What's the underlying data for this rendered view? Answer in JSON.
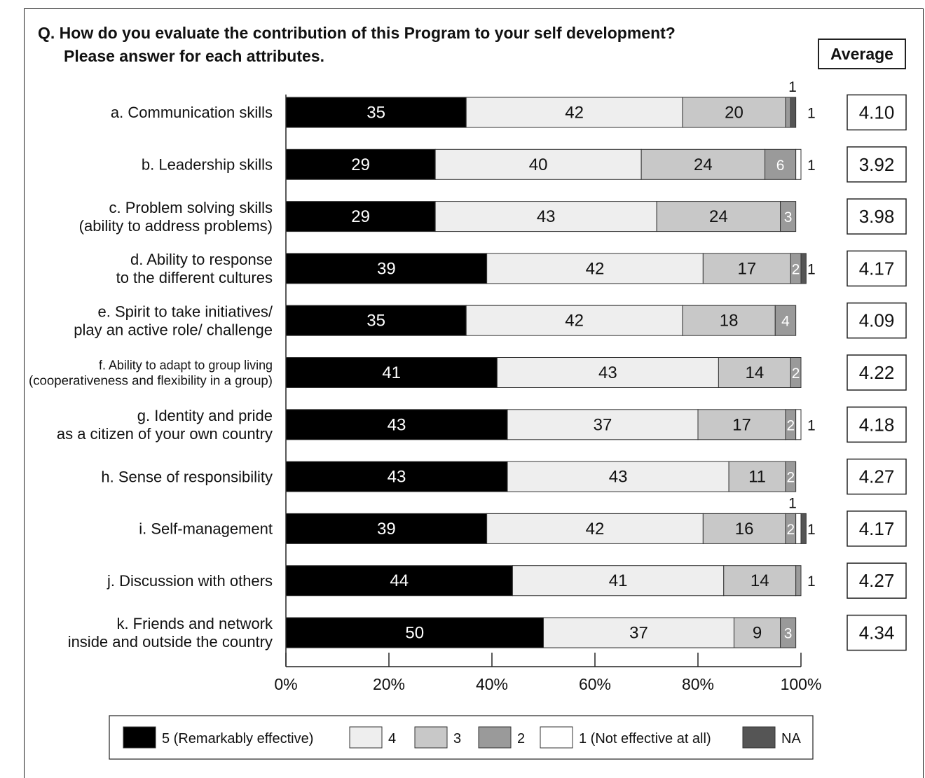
{
  "title_line1": "Q. How do you evaluate the contribution of this Program to your self development?",
  "title_line2": "Please answer for each attributes.",
  "average_header": "Average",
  "colors": {
    "5 (Remarkably effective)": "#000000",
    "4": "#eeeeee",
    "3": "#c8c8c8",
    "2": "#9a9a9a",
    "1 (Not effective at all)": "#ffffff",
    "NA": "#555555"
  },
  "chart_data": {
    "type": "bar",
    "orientation": "horizontal",
    "stacked": "100%",
    "categories": [
      [
        "a. Communication skills"
      ],
      [
        "b. Leadership skills"
      ],
      [
        "c. Problem solving skills",
        "(ability to address problems)"
      ],
      [
        "d. Ability to response",
        "to the different cultures"
      ],
      [
        "e. Spirit to take initiatives/",
        "play an active role/ challenge"
      ],
      [
        "f. Ability to adapt to group living",
        "(cooperativeness and flexibility in a group)"
      ],
      [
        "g. Identity and pride",
        "as a citizen of your own country"
      ],
      [
        "h. Sense of responsibility"
      ],
      [
        "i. Self-management"
      ],
      [
        "j. Discussion with others"
      ],
      [
        "k. Friends and network",
        "inside and outside the country"
      ]
    ],
    "series": [
      {
        "name": "5 (Remarkably effective)",
        "values": [
          35,
          29,
          29,
          39,
          35,
          41,
          43,
          43,
          39,
          44,
          50
        ]
      },
      {
        "name": "4",
        "values": [
          42,
          40,
          43,
          42,
          42,
          43,
          37,
          43,
          42,
          41,
          37
        ]
      },
      {
        "name": "3",
        "values": [
          20,
          24,
          24,
          17,
          18,
          14,
          17,
          11,
          16,
          14,
          9
        ]
      },
      {
        "name": "2",
        "values": [
          1,
          6,
          3,
          2,
          4,
          2,
          2,
          2,
          2,
          1,
          3
        ]
      },
      {
        "name": "1 (Not effective at all)",
        "values": [
          0,
          1,
          0,
          0,
          0,
          0,
          1,
          0,
          1,
          0,
          0
        ]
      },
      {
        "name": "NA",
        "values": [
          1,
          0,
          0,
          1,
          0,
          0,
          0,
          0,
          1,
          0,
          0
        ]
      }
    ],
    "labels": [
      [
        "35",
        "42",
        "20",
        "",
        "",
        ""
      ],
      [
        "29",
        "40",
        "24",
        "6",
        "",
        ""
      ],
      [
        "29",
        "43",
        "24",
        "3",
        "",
        ""
      ],
      [
        "39",
        "42",
        "17",
        "2",
        "",
        ""
      ],
      [
        "35",
        "42",
        "18",
        "4",
        "",
        ""
      ],
      [
        "41",
        "43",
        "14",
        "2",
        "",
        ""
      ],
      [
        "43",
        "37",
        "17",
        "2",
        "",
        ""
      ],
      [
        "43",
        "43",
        "11",
        "2",
        "",
        ""
      ],
      [
        "39",
        "42",
        "16",
        "2",
        "",
        ""
      ],
      [
        "44",
        "41",
        "14",
        "",
        "",
        ""
      ],
      [
        "50",
        "37",
        "9",
        "3",
        "",
        ""
      ]
    ],
    "outside_right_labels": [
      "1",
      "1",
      "",
      "1",
      "",
      "",
      "1",
      "",
      "1",
      "1",
      ""
    ],
    "top_labels": [
      "1",
      "",
      "",
      "",
      "",
      "",
      "",
      "",
      "1",
      "",
      ""
    ],
    "averages": [
      "4.10",
      "3.92",
      "3.98",
      "4.17",
      "4.09",
      "4.22",
      "4.18",
      "4.27",
      "4.17",
      "4.27",
      "4.34"
    ],
    "x_ticks": [
      "0%",
      "20%",
      "40%",
      "60%",
      "80%",
      "100%"
    ],
    "xlim": [
      0,
      100
    ],
    "legend": {
      "position": "bottom",
      "entries": [
        "5 (Remarkably effective)",
        "4",
        "3",
        "2",
        "1 (Not effective at all)",
        "NA"
      ]
    }
  }
}
